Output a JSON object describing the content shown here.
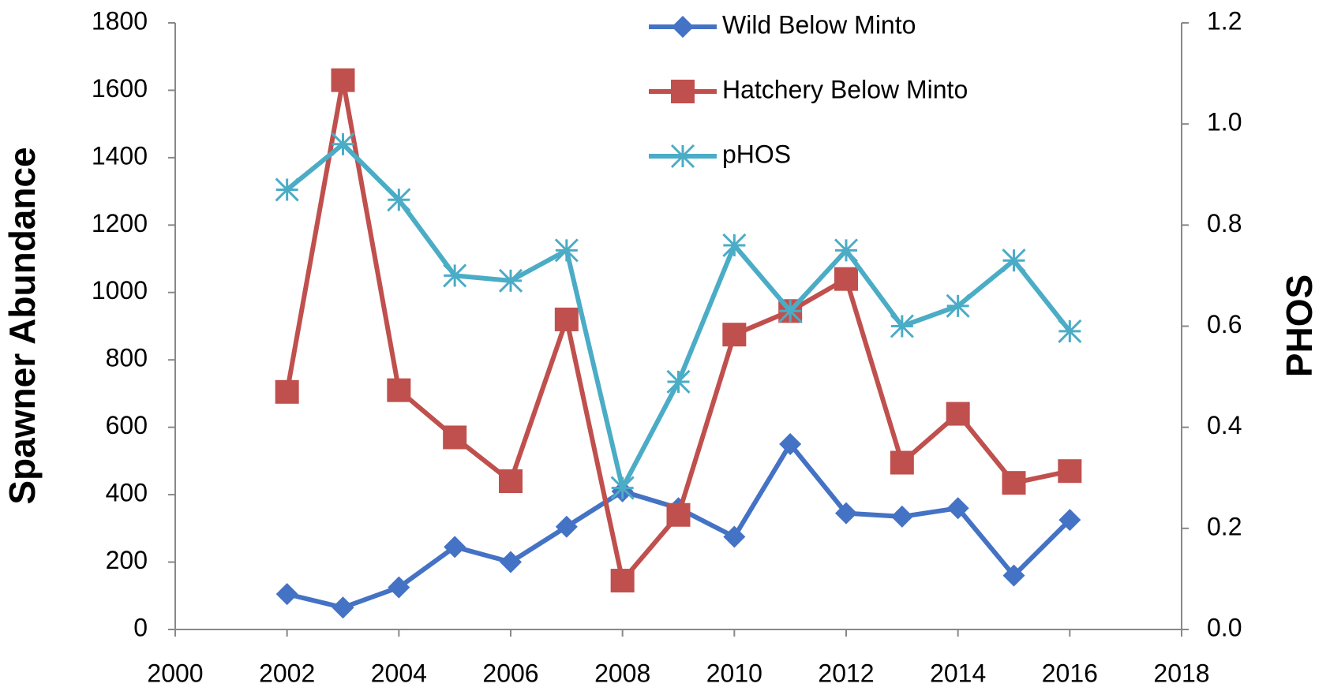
{
  "chart_data": {
    "type": "line",
    "y_label": "Spawner Abundance",
    "y2_label": "PHOS",
    "x": [
      2002,
      2003,
      2004,
      2005,
      2006,
      2007,
      2008,
      2009,
      2010,
      2011,
      2012,
      2013,
      2014,
      2015,
      2016
    ],
    "xlim": [
      2000,
      2018
    ],
    "xticks": [
      2000,
      2002,
      2004,
      2006,
      2008,
      2010,
      2012,
      2014,
      2016,
      2018
    ],
    "ylim": [
      0,
      1800
    ],
    "yticks": [
      0,
      200,
      400,
      600,
      800,
      1000,
      1200,
      1400,
      1600,
      1800
    ],
    "y2lim": [
      0,
      1.2
    ],
    "y2ticks": [
      {
        "value": 0,
        "label": "0.0"
      },
      0.2,
      0.4,
      0.6,
      0.8,
      {
        "value": 1,
        "label": "1.0"
      },
      1.2
    ],
    "legend": "top",
    "series": [
      {
        "name": "Wild Below Minto",
        "color": "#4472c4",
        "marker": "diamond",
        "values": [
          105,
          65,
          125,
          245,
          200,
          305,
          410,
          360,
          275,
          550,
          345,
          335,
          360,
          160,
          325
        ]
      },
      {
        "name": "Hatchery Below Minto",
        "color": "#c0504d",
        "marker": "square",
        "values": [
          705,
          1630,
          710,
          570,
          440,
          920,
          145,
          340,
          875,
          945,
          1040,
          495,
          640,
          435,
          470
        ]
      },
      {
        "name": "pHOS",
        "color": "#4bacc6",
        "marker": "asterisk",
        "axis": "y2",
        "values": [
          0.87,
          0.96,
          0.85,
          0.7,
          0.69,
          0.75,
          0.28,
          0.49,
          0.76,
          0.63,
          0.75,
          0.6,
          0.64,
          0.73,
          0.59
        ]
      }
    ]
  }
}
